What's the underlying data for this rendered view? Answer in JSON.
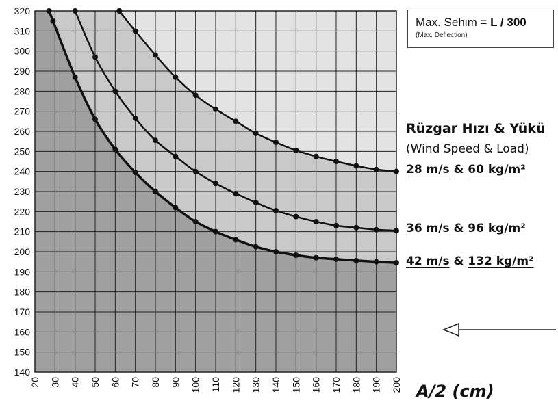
{
  "chart_data": {
    "type": "line",
    "xlabel": "A/2 (cm)",
    "ylabel": "",
    "xlim": [
      20,
      200
    ],
    "ylim": [
      140,
      320
    ],
    "xticks": [
      20,
      30,
      40,
      50,
      60,
      70,
      80,
      90,
      100,
      110,
      120,
      130,
      140,
      150,
      160,
      170,
      180,
      190,
      200
    ],
    "yticks": [
      140,
      150,
      160,
      170,
      180,
      190,
      200,
      210,
      220,
      230,
      240,
      250,
      260,
      270,
      280,
      290,
      300,
      310,
      320
    ],
    "grid": true,
    "series": [
      {
        "name": "28 m/s & 60 kg/m²",
        "speed": "28 m/s",
        "load": "60 kg/m²",
        "x": [
          62,
          70,
          80,
          90,
          100,
          110,
          120,
          130,
          140,
          150,
          160,
          170,
          180,
          190,
          200
        ],
        "y": [
          320,
          310,
          298,
          287,
          278,
          271,
          265,
          259,
          254.5,
          250.5,
          247.5,
          245,
          242.8,
          241,
          240
        ]
      },
      {
        "name": "36 m/s & 96 kg/m²",
        "speed": "36 m/s",
        "load": "96 kg/m²",
        "x": [
          40,
          50,
          60,
          70,
          80,
          90,
          100,
          110,
          120,
          130,
          140,
          150,
          160,
          170,
          180,
          190,
          200
        ],
        "y": [
          320,
          297,
          280,
          266.5,
          255.5,
          247.5,
          240,
          234,
          229,
          224.5,
          220.5,
          217.5,
          215,
          213,
          212,
          211,
          210.5
        ]
      },
      {
        "name": "42 m/s & 132 kg/m²",
        "speed": "42 m/s",
        "load": "132 kg/m²",
        "x": [
          27,
          29,
          40,
          50,
          60,
          70,
          80,
          90,
          100,
          110,
          120,
          130,
          140,
          150,
          160,
          170,
          180,
          190,
          200
        ],
        "y": [
          320,
          315,
          287,
          266,
          251,
          239.5,
          230,
          222,
          215,
          210,
          206,
          202.5,
          200,
          198.3,
          197,
          196.3,
          195.6,
          195,
          194.5
        ]
      }
    ]
  },
  "legend": {
    "main_prefix": "Max. Sehim = ",
    "main_formula": "L / 300",
    "sub": "(Max. Deflection)"
  },
  "wind": {
    "title": "Rüzgar Hızı & Yükü",
    "subtitle": "(Wind Speed & Load)",
    "amp": "&"
  },
  "colors": {
    "dark_region": "#a0a0a0",
    "mid_region": "#c9c9c9",
    "light_region": "#e3e3e3",
    "curve": "#111111",
    "grid": "#222222"
  }
}
